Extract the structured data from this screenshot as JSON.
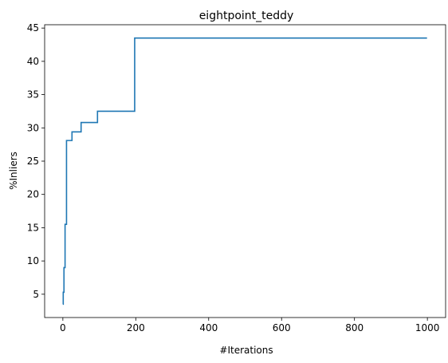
{
  "chart_data": {
    "type": "line",
    "title": "eightpoint_teddy",
    "xlabel": "#Iterations",
    "ylabel": "%Inliers",
    "xlim": [
      -50,
      1050
    ],
    "ylim": [
      1.5,
      45.5
    ],
    "xticks": [
      0,
      200,
      400,
      600,
      800,
      1000
    ],
    "yticks": [
      5,
      10,
      15,
      20,
      25,
      30,
      35,
      40,
      45
    ],
    "grid": false,
    "legend": "none",
    "series": [
      {
        "color": "#1f77b4",
        "x": [
          0,
          1,
          1,
          3,
          3,
          6,
          6,
          10,
          10,
          25,
          25,
          50,
          50,
          95,
          95,
          197,
          197,
          999
        ],
        "y": [
          3.5,
          3.5,
          5.3,
          5.3,
          9.0,
          9.0,
          15.5,
          15.5,
          28.1,
          28.1,
          29.4,
          29.4,
          30.8,
          30.8,
          32.5,
          32.5,
          43.5,
          43.5
        ]
      }
    ]
  }
}
